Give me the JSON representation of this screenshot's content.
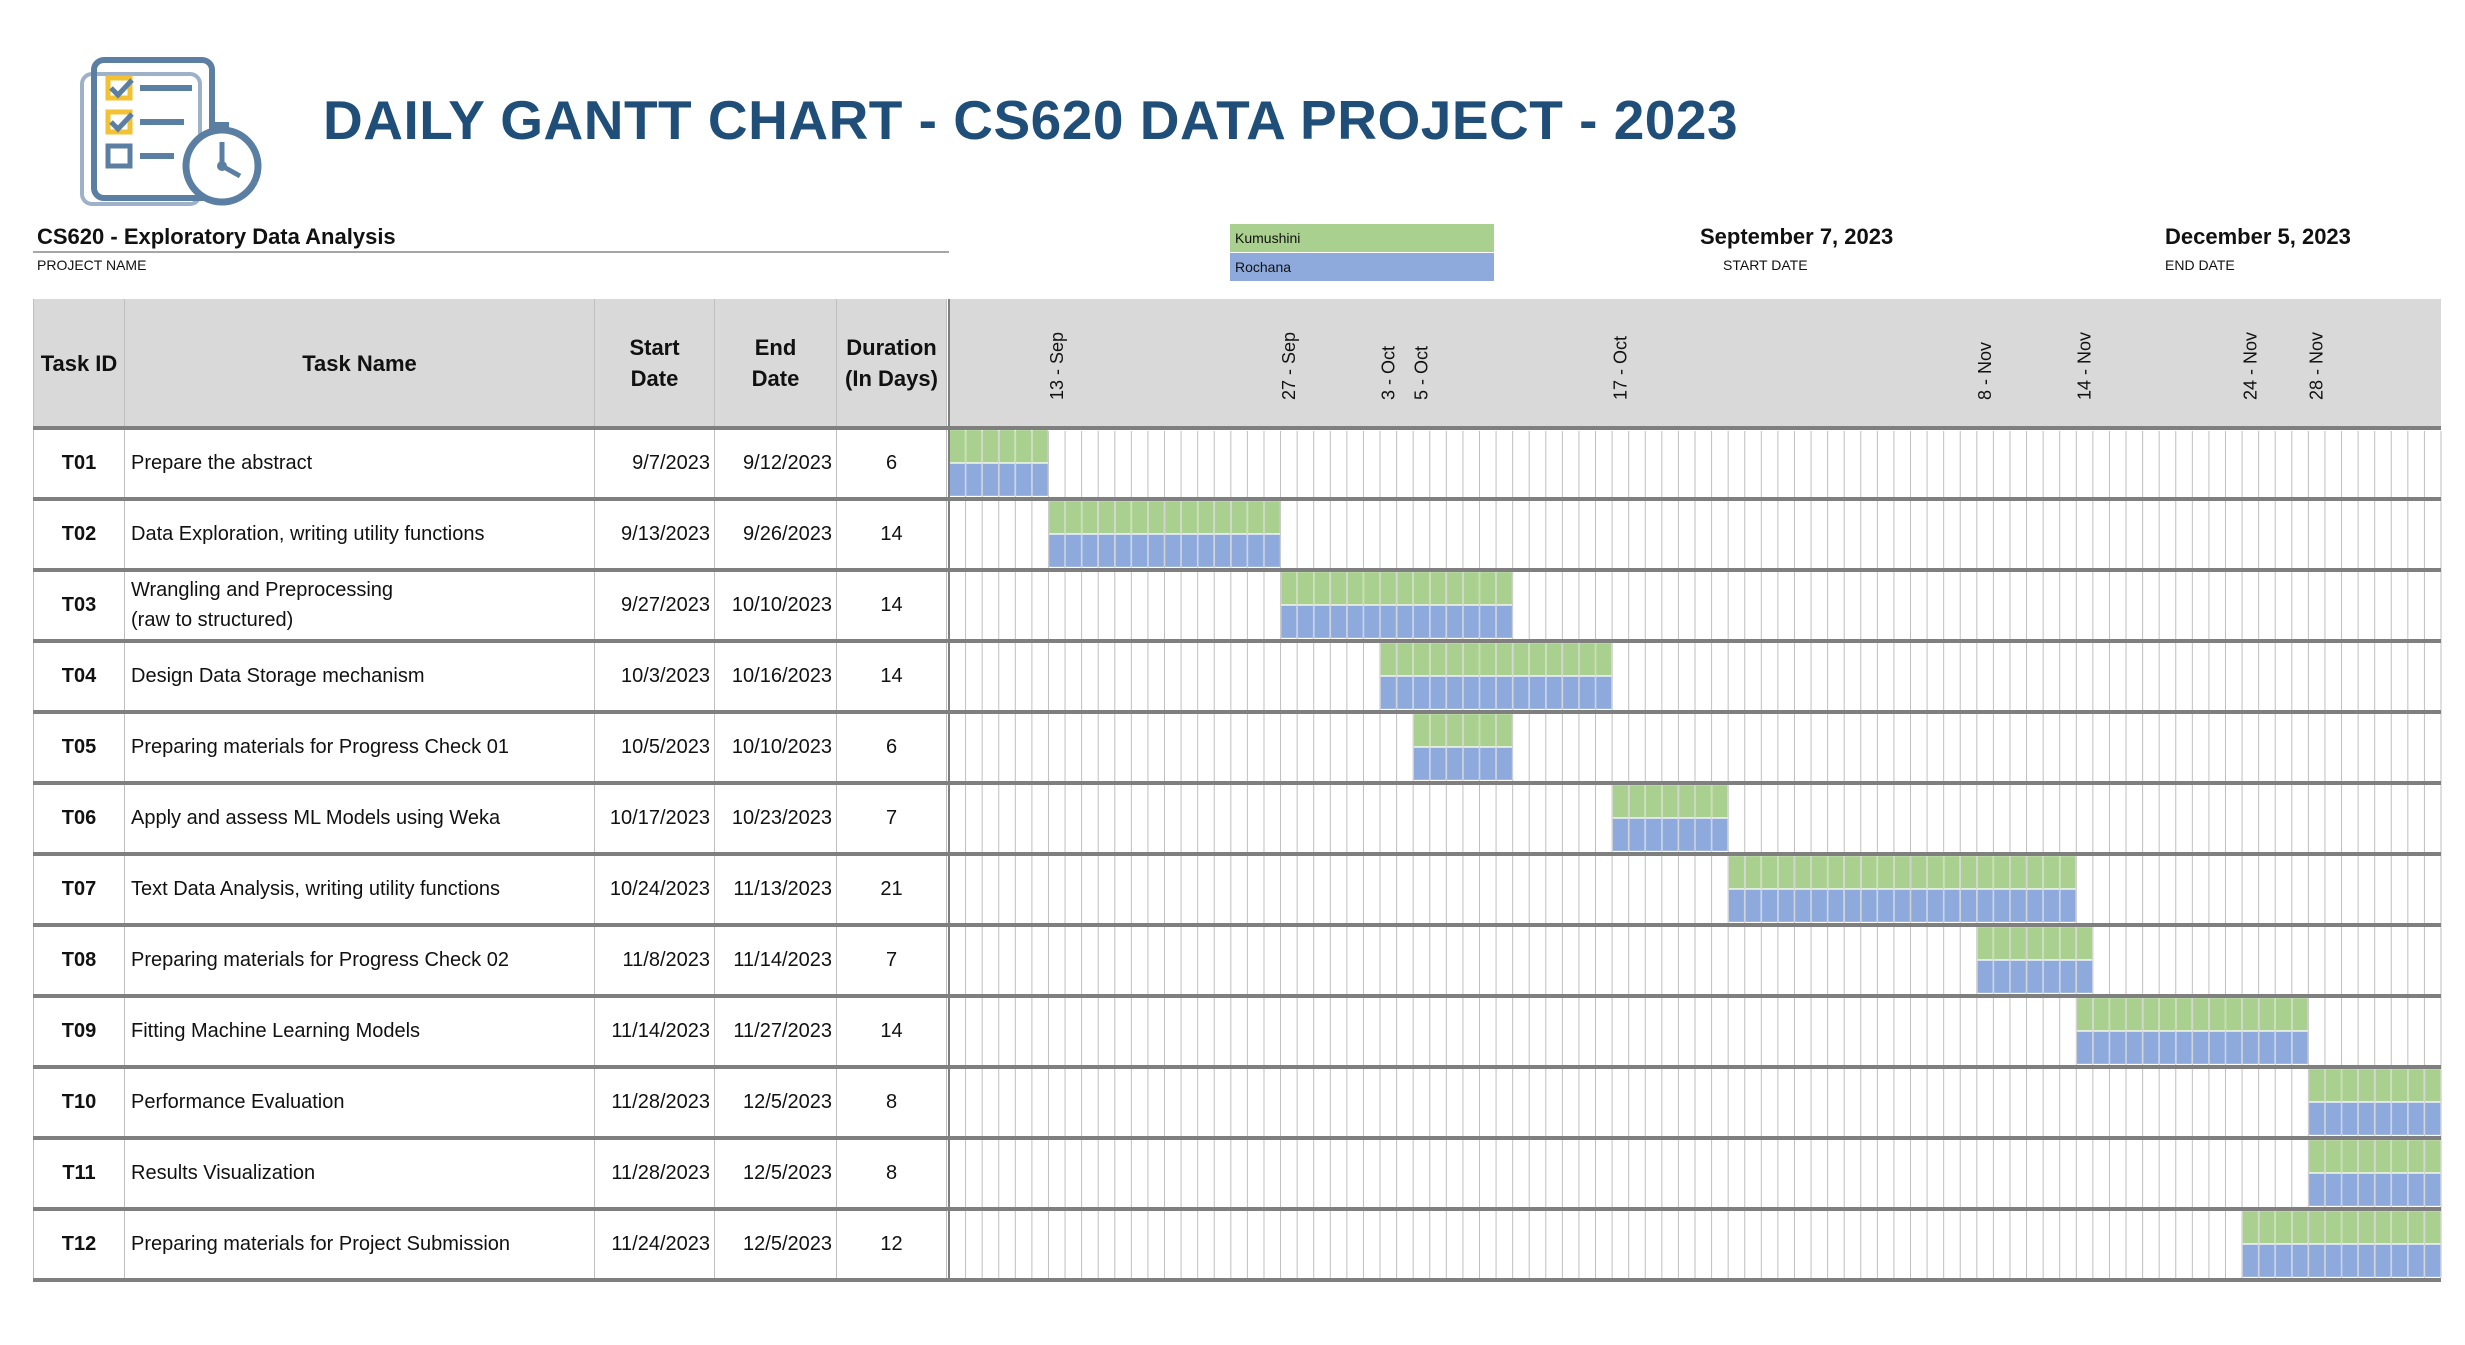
{
  "header": {
    "title": "DAILY GANTT CHART - CS620 DATA PROJECT - 2023",
    "project_name": "CS620 - Exploratory Data Analysis",
    "project_name_caption": "PROJECT NAME",
    "start_date": "September 7, 2023",
    "start_date_caption": "START DATE",
    "end_date": "December 5, 2023",
    "end_date_caption": "END DATE",
    "logo_icon": "checklist-stopwatch-icon"
  },
  "legend": [
    {
      "label": "Kumushini",
      "color": "#a9d08e"
    },
    {
      "label": "Rochana",
      "color": "#8ea9db"
    }
  ],
  "table": {
    "headers": {
      "task_id": "Task ID",
      "task_name": "Task Name",
      "start_line1": "Start",
      "start_line2": "Date",
      "end_line1": "End",
      "end_line2": "Date",
      "duration_line1": "Duration",
      "duration_line2": "(In Days)"
    }
  },
  "chart_data": {
    "type": "gantt",
    "x_start": "2023-09-07",
    "x_end": "2023-12-05",
    "tick_labels": [
      {
        "date": "2023-09-13",
        "label": "13 - Sep"
      },
      {
        "date": "2023-09-27",
        "label": "27 - Sep"
      },
      {
        "date": "2023-10-03",
        "label": "3 - Oct"
      },
      {
        "date": "2023-10-05",
        "label": "5 - Oct"
      },
      {
        "date": "2023-10-17",
        "label": "17 - Oct"
      },
      {
        "date": "2023-11-08",
        "label": "8 - Nov"
      },
      {
        "date": "2023-11-14",
        "label": "14 - Nov"
      },
      {
        "date": "2023-11-24",
        "label": "24 - Nov"
      },
      {
        "date": "2023-11-28",
        "label": "28 - Nov"
      }
    ],
    "series": [
      {
        "name": "Kumushini",
        "color": "#a9d08e"
      },
      {
        "name": "Rochana",
        "color": "#8ea9db"
      }
    ],
    "tasks": [
      {
        "id": "T01",
        "name": "Prepare the abstract",
        "start": "9/7/2023",
        "end": "9/12/2023",
        "start_iso": "2023-09-07",
        "end_iso": "2023-09-12",
        "duration": "6"
      },
      {
        "id": "T02",
        "name": "Data Exploration, writing utility functions",
        "start": "9/13/2023",
        "end": "9/26/2023",
        "start_iso": "2023-09-13",
        "end_iso": "2023-09-26",
        "duration": "14"
      },
      {
        "id": "T03",
        "name": "Wrangling and Preprocessing\n(raw to structured)",
        "start": "9/27/2023",
        "end": "10/10/2023",
        "start_iso": "2023-09-27",
        "end_iso": "2023-10-10",
        "duration": "14"
      },
      {
        "id": "T04",
        "name": "Design Data Storage mechanism",
        "start": "10/3/2023",
        "end": "10/16/2023",
        "start_iso": "2023-10-03",
        "end_iso": "2023-10-16",
        "duration": "14"
      },
      {
        "id": "T05",
        "name": "Preparing materials for Progress Check 01",
        "start": "10/5/2023",
        "end": "10/10/2023",
        "start_iso": "2023-10-05",
        "end_iso": "2023-10-10",
        "duration": "6"
      },
      {
        "id": "T06",
        "name": "Apply and assess ML Models using Weka",
        "start": "10/17/2023",
        "end": "10/23/2023",
        "start_iso": "2023-10-17",
        "end_iso": "2023-10-23",
        "duration": "7"
      },
      {
        "id": "T07",
        "name": "Text Data Analysis, writing utility functions",
        "start": "10/24/2023",
        "end": "11/13/2023",
        "start_iso": "2023-10-24",
        "end_iso": "2023-11-13",
        "duration": "21"
      },
      {
        "id": "T08",
        "name": "Preparing materials for Progress Check 02",
        "start": "11/8/2023",
        "end": "11/14/2023",
        "start_iso": "2023-11-08",
        "end_iso": "2023-11-14",
        "duration": "7"
      },
      {
        "id": "T09",
        "name": "Fitting Machine Learning Models",
        "start": "11/14/2023",
        "end": "11/27/2023",
        "start_iso": "2023-11-14",
        "end_iso": "2023-11-27",
        "duration": "14"
      },
      {
        "id": "T10",
        "name": "Performance Evaluation",
        "start": "11/28/2023",
        "end": "12/5/2023",
        "start_iso": "2023-11-28",
        "end_iso": "2023-12-05",
        "duration": "8"
      },
      {
        "id": "T11",
        "name": "Results Visualization",
        "start": "11/28/2023",
        "end": "12/5/2023",
        "start_iso": "2023-11-28",
        "end_iso": "2023-12-05",
        "duration": "8"
      },
      {
        "id": "T12",
        "name": "Preparing materials for Project Submission",
        "start": "11/24/2023",
        "end": "12/5/2023",
        "start_iso": "2023-11-24",
        "end_iso": "2023-12-05",
        "duration": "12"
      }
    ]
  }
}
